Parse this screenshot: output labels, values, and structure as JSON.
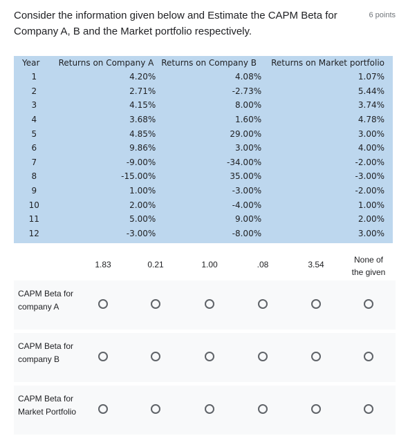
{
  "question": {
    "text": "Consider the information given below and Estimate the CAPM Beta for Company A, B and the Market portfolio respectively.",
    "points": "6 points"
  },
  "table": {
    "headers": [
      "Year",
      "Returns on Company A",
      "Returns on Company B",
      "Returns on Market portfolio"
    ],
    "rows": [
      [
        "1",
        "4.20%",
        "4.08%",
        "1.07%"
      ],
      [
        "2",
        "2.71%",
        "-2.73%",
        "5.44%"
      ],
      [
        "3",
        "4.15%",
        "8.00%",
        "3.74%"
      ],
      [
        "4",
        "3.68%",
        "1.60%",
        "4.78%"
      ],
      [
        "5",
        "4.85%",
        "29.00%",
        "3.00%"
      ],
      [
        "6",
        "9.86%",
        "3.00%",
        "4.00%"
      ],
      [
        "7",
        "-9.00%",
        "-34.00%",
        "-2.00%"
      ],
      [
        "8",
        "-15.00%",
        "35.00%",
        "-3.00%"
      ],
      [
        "9",
        "1.00%",
        "-3.00%",
        "-2.00%"
      ],
      [
        "10",
        "2.00%",
        "-4.00%",
        "1.00%"
      ],
      [
        "11",
        "5.00%",
        "9.00%",
        "2.00%"
      ],
      [
        "12",
        "-3.00%",
        "-8.00%",
        "3.00%"
      ]
    ]
  },
  "grid": {
    "columns": [
      "1.83",
      "0.21",
      "1.00",
      ".08",
      "3.54",
      "None of the given"
    ],
    "rows": [
      {
        "label": "CAPM Beta for company A"
      },
      {
        "label": "CAPM Beta for company B"
      },
      {
        "label": "CAPM Beta for Market Portfolio"
      }
    ]
  }
}
